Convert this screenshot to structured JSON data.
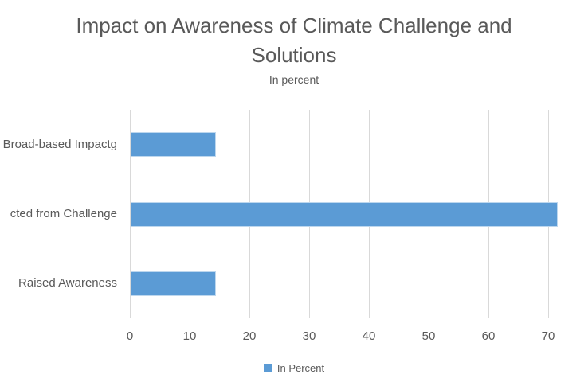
{
  "chart_data": {
    "type": "bar",
    "orientation": "horizontal",
    "title": "Impact on Awareness of Climate Challenge and Solutions",
    "subtitle": "In percent",
    "categories": [
      "Broad-based Impactg",
      "cted from Challenge",
      "Raised Awareness"
    ],
    "values": [
      14.3,
      71.4,
      14.3
    ],
    "series_name": "In Percent",
    "xlabel": "",
    "ylabel": "",
    "xlim": [
      0,
      80
    ],
    "xticks": [
      0,
      10,
      20,
      30,
      40,
      50,
      60,
      70
    ],
    "grid": "vertical-only",
    "legend_position": "bottom",
    "colors": {
      "bar": "#5b9bd5",
      "bar_edge": "#bdd7ee",
      "gridline": "#d9d9d9",
      "text": "#595959",
      "background": "#ffffff"
    }
  }
}
